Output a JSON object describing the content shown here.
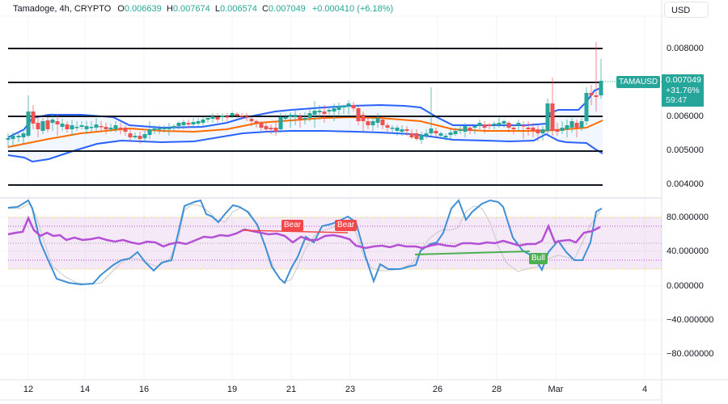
{
  "header": {
    "symbol_title": "Tamadoge, 4h, CRYPTO",
    "open_label": "O",
    "open_value": "0.006639",
    "high_label": "H",
    "high_value": "0.007674",
    "low_label": "L",
    "low_value": "0.006574",
    "close_label": "C",
    "close_value": "0.007049",
    "change": "+0.000410 (+6.18%)"
  },
  "currency_button": "USD",
  "price_tag": {
    "symbol": "TAMAUSD",
    "price": "0.007049",
    "percent": "+31.76%",
    "countdown": "59:47"
  },
  "price_axis": [
    "0.008000",
    "0.006000",
    "0.005000",
    "0.004000"
  ],
  "rsi_axis": [
    "80.000000",
    "40.000000",
    "0.000000",
    "−40.000000",
    "−80.000000"
  ],
  "time_axis": [
    "12",
    "14",
    "16",
    "19",
    "21",
    "23",
    "26",
    "28",
    "Mar",
    "4"
  ],
  "signals": [
    {
      "label": "Bear",
      "type": "bear"
    },
    {
      "label": "Bear",
      "type": "bear"
    },
    {
      "label": "Bull",
      "type": "bull"
    }
  ],
  "colors": {
    "up": "#26a69a",
    "down": "#ef5350",
    "bollinger": "#2962ff",
    "basis": "#ff6d00",
    "rsi": "#b44fd6",
    "stoch": "#3d8fd6",
    "bear": "#f2484b",
    "bull": "#4caf50"
  },
  "chart_data": [
    {
      "type": "candlestick",
      "title": "Tamadoge, 4h, CRYPTO",
      "xlabel": "",
      "ylabel": "USD",
      "categories": [
        "12",
        "14",
        "16",
        "19",
        "21",
        "23",
        "26",
        "28",
        "Mar",
        "4"
      ],
      "ylim": [
        0.0037,
        0.0085
      ],
      "horizontal_levels": [
        0.008,
        0.007,
        0.006,
        0.005,
        0.004
      ],
      "last": {
        "open": 0.006639,
        "high": 0.007674,
        "low": 0.006574,
        "close": 0.007049,
        "change": 0.00041,
        "change_pct": 6.18
      },
      "series": [
        {
          "name": "Bollinger upper",
          "values": [
            0.00535,
            0.00605,
            0.00605,
            0.006,
            0.00585,
            0.00595,
            0.0063,
            0.0064,
            0.0064,
            0.00625,
            0.00595,
            0.00595,
            0.006,
            0.00645,
            0.0069
          ]
        },
        {
          "name": "Bollinger basis",
          "values": [
            0.00505,
            0.00535,
            0.0056,
            0.0057,
            0.0056,
            0.0058,
            0.006,
            0.00595,
            0.0057,
            0.00555,
            0.00555,
            0.0056,
            0.00565,
            0.0057,
            0.0059
          ]
        },
        {
          "name": "Bollinger lower",
          "values": [
            0.0048,
            0.0047,
            0.0049,
            0.0053,
            0.00535,
            0.00545,
            0.0054,
            0.0055,
            0.0055,
            0.0053,
            0.00535,
            0.00535,
            0.0053,
            0.0052,
            0.00495
          ]
        }
      ]
    },
    {
      "type": "line",
      "title": "RSI / Stochastic RSI",
      "categories": [
        "12",
        "14",
        "16",
        "19",
        "21",
        "23",
        "26",
        "28",
        "Mar",
        "4"
      ],
      "ylim": [
        -100,
        100
      ],
      "bands": [
        20,
        30,
        50,
        70,
        80
      ],
      "series": [
        {
          "name": "RSI",
          "values": [
            60,
            78,
            62,
            58,
            54,
            52,
            50,
            48,
            56,
            61,
            56,
            48,
            54,
            46,
            45,
            44,
            48,
            50,
            46,
            42,
            68,
            52,
            60,
            70
          ]
        },
        {
          "name": "Stoch RSI",
          "values": [
            93,
            97,
            38,
            5,
            2,
            30,
            22,
            12,
            55,
            98,
            96,
            85,
            90,
            10,
            60,
            70,
            12,
            22,
            88,
            97,
            12,
            62,
            35,
            92
          ]
        }
      ],
      "annotations": [
        "Bear",
        "Bear",
        "Bull"
      ]
    }
  ]
}
